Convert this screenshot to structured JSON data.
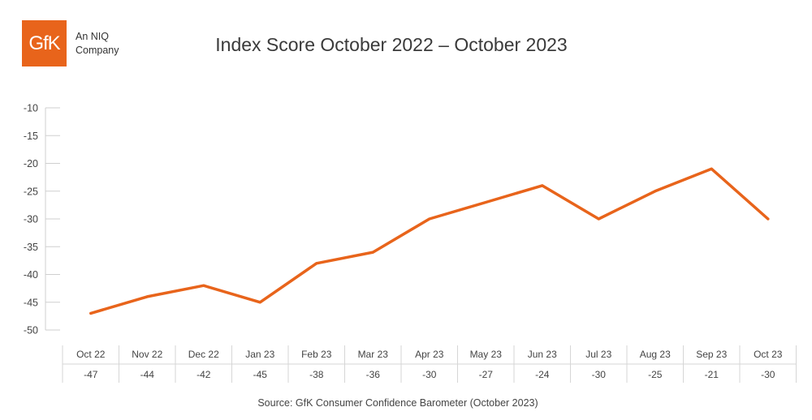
{
  "brand": {
    "logo_text": "GfK",
    "subtitle_line1": "An NIQ",
    "subtitle_line2": "Company",
    "color": "#e8641b"
  },
  "source": "Source: GfK Consumer Confidence Barometer (October 2023)",
  "chart_data": {
    "type": "line",
    "title": "Index Score October 2022 – October 2023",
    "categories": [
      "Oct 22",
      "Nov 22",
      "Dec 22",
      "Jan 23",
      "Feb 23",
      "Mar 23",
      "Apr 23",
      "May 23",
      "Jun 23",
      "Jul 23",
      "Aug 23",
      "Sep 23",
      "Oct 23"
    ],
    "series": [
      {
        "values": [
          -47,
          -44,
          -42,
          -45,
          -38,
          -36,
          -30,
          -27,
          -24,
          -30,
          -25,
          -21,
          -30
        ],
        "color": "#e8641b"
      }
    ],
    "table_row": [
      "-47",
      "-44",
      "-42",
      "-45",
      "-38",
      "-36",
      "-30",
      "-27",
      "-24",
      "-30",
      "-25",
      "-21",
      "-30"
    ],
    "ylim": [
      -50,
      -10
    ],
    "yticks": [
      -10,
      -15,
      -20,
      -25,
      -30,
      -35,
      -40,
      -45,
      -50
    ],
    "ytick_labels": [
      "-10",
      "-15",
      "-20",
      "-25",
      "-30",
      "-35",
      "-40",
      "-45",
      "-50"
    ],
    "grid": false,
    "legend": "none"
  }
}
